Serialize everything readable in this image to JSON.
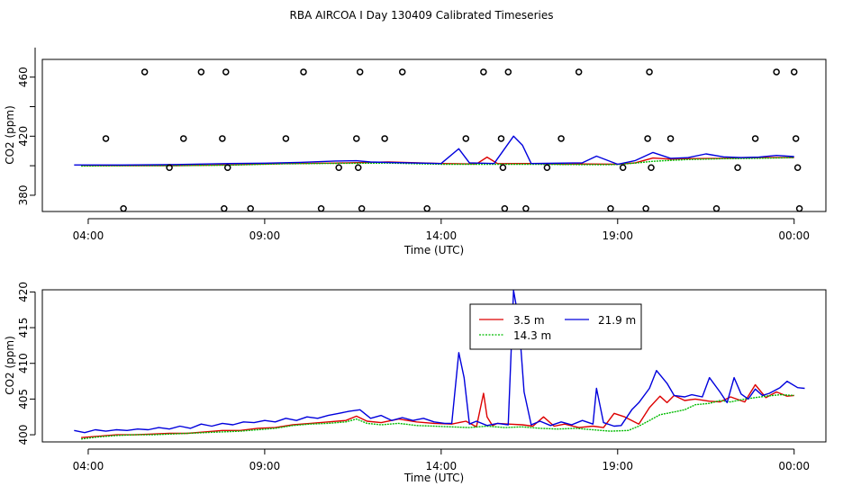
{
  "chart_data": {
    "type": "line",
    "title": "RBA AIRCOA I  Day 130409  Calibrated Timeseries",
    "panels": [
      {
        "id": "top",
        "xlabel": "Time (UTC)",
        "ylabel": "CO2 (ppm)",
        "xlim": [
          2.7,
          24.9
        ],
        "ylim": [
          369,
          472
        ],
        "xticks": [
          {
            "v": 4,
            "label": "04:00"
          },
          {
            "v": 9,
            "label": "09:00"
          },
          {
            "v": 14,
            "label": "14:00"
          },
          {
            "v": 19,
            "label": "19:00"
          },
          {
            "v": 24,
            "label": "00:00"
          }
        ],
        "yticks": [
          {
            "v": 380,
            "label": "380"
          },
          {
            "v": 420,
            "label": "420"
          },
          {
            "v": 460,
            "label": "460"
          }
        ],
        "series": [
          {
            "name": "3.5 m",
            "color": "#dd0000",
            "x": [
              3.8,
              5,
              6.5,
              8,
              9.5,
              11,
              12.5,
              14,
              15,
              15.3,
              15.6,
              16.5,
              17.5,
              18,
              19,
              19.5,
              20,
              20.5,
              21,
              22,
              23,
              24
            ],
            "y": [
              400.2,
              400.0,
              400.1,
              400.6,
              401.4,
              401.8,
              402.5,
              401.5,
              401.2,
              405.8,
              401.4,
              401.5,
              401.0,
              401.2,
              401.0,
              402.0,
              405.2,
              404.5,
              404.8,
              405.0,
              405.5,
              405.5
            ]
          },
          {
            "name": "14.3 m",
            "color": "#00bb00",
            "x": [
              3.8,
              5,
              6.5,
              8,
              9.5,
              11,
              12.5,
              14,
              15,
              16.5,
              17.5,
              18.5,
              19,
              19.5,
              20,
              21,
              22,
              23,
              24
            ],
            "y": [
              399.8,
              400.0,
              400.1,
              400.4,
              401.3,
              401.6,
              401.8,
              401.0,
              401.0,
              401.0,
              400.8,
              400.7,
              400.8,
              401.8,
              403.0,
              404.2,
              404.8,
              405.0,
              405.5
            ]
          },
          {
            "name": "21.9 m",
            "color": "#0000dd",
            "x": [
              3.6,
              5,
              6.5,
              8,
              9,
              10,
              11,
              11.6,
              12,
              12.5,
              14,
              14.5,
              14.8,
              15.5,
              16.05,
              16.3,
              16.55,
              17,
              18,
              18.4,
              19,
              19.5,
              20,
              20.5,
              21,
              21.5,
              22,
              22.5,
              23,
              23.5,
              24
            ],
            "y": [
              400.5,
              400.5,
              400.8,
              401.5,
              401.7,
              402.3,
              403.2,
              403.4,
              402.5,
              402.2,
              401.5,
              411.5,
              402.0,
              401.5,
              420.0,
              414.0,
              401.5,
              401.6,
              402.0,
              406.5,
              401.0,
              403.5,
              409.0,
              405.0,
              405.5,
              408.0,
              406.0,
              405.5,
              405.8,
              407.0,
              406.2
            ]
          }
        ],
        "outlier_points": {
          "x": [
            4.5,
            5.0,
            5.6,
            6.3,
            6.7,
            7.2,
            7.8,
            7.85,
            7.9,
            7.95,
            8.6,
            9.6,
            10.1,
            10.6,
            11.1,
            11.6,
            11.65,
            11.7,
            11.75,
            12.4,
            12.9,
            13.6,
            14.7,
            15.2,
            15.7,
            15.75,
            15.8,
            15.9,
            16.4,
            17.0,
            17.4,
            17.9,
            18.8,
            19.15,
            19.8,
            19.85,
            19.9,
            19.95,
            20.5,
            21.8,
            22.4,
            22.9,
            23.5,
            24.0,
            24.05,
            24.1,
            24.15
          ],
          "y": [
            418.4,
            371.0,
            463.5,
            398.7,
            418.4,
            463.5,
            418.4,
            371.0,
            463.5,
            398.7,
            371.0,
            418.4,
            463.5,
            371.0,
            398.7,
            418.4,
            398.7,
            463.5,
            371.0,
            418.4,
            463.5,
            371.0,
            418.4,
            463.5,
            418.4,
            398.7,
            371.0,
            463.5,
            371.0,
            398.7,
            418.4,
            463.5,
            371.0,
            398.7,
            371.0,
            418.4,
            463.5,
            398.7,
            418.4,
            371.0,
            398.7,
            418.4,
            463.5,
            463.5,
            418.4,
            398.7,
            371.0
          ]
        }
      },
      {
        "id": "bottom",
        "xlabel": "Time (UTC)",
        "ylabel": "CO2 (ppm)",
        "xlim": [
          2.7,
          24.9
        ],
        "ylim": [
          399.0,
          420.3
        ],
        "xticks": [
          {
            "v": 4,
            "label": "04:00"
          },
          {
            "v": 9,
            "label": "09:00"
          },
          {
            "v": 14,
            "label": "14:00"
          },
          {
            "v": 19,
            "label": "19:00"
          },
          {
            "v": 24,
            "label": "00:00"
          }
        ],
        "yticks": [
          {
            "v": 400,
            "label": "400"
          },
          {
            "v": 405,
            "label": "405"
          },
          {
            "v": 410,
            "label": "410"
          },
          {
            "v": 415,
            "label": "415"
          },
          {
            "v": 420,
            "label": "420"
          }
        ],
        "legend": {
          "position": "top-center",
          "entries": [
            {
              "label": "3.5 m",
              "series": "3.5 m"
            },
            {
              "label": "21.9 m",
              "series": "21.9 m"
            },
            {
              "label": "14.3 m",
              "series": "14.3 m"
            }
          ]
        },
        "series": [
          {
            "name": "3.5 m",
            "color": "#dd0000",
            "x": [
              3.8,
              4.3,
              4.8,
              5.3,
              5.8,
              6.3,
              6.8,
              7.3,
              7.8,
              8.3,
              8.8,
              9.3,
              9.8,
              10.3,
              10.8,
              11.3,
              11.6,
              11.9,
              12.3,
              12.8,
              13.3,
              13.8,
              14.3,
              14.7,
              15.0,
              15.2,
              15.3,
              15.45,
              15.6,
              15.9,
              16.3,
              16.6,
              16.9,
              17.2,
              17.5,
              17.9,
              18.3,
              18.6,
              18.9,
              19.2,
              19.6,
              19.9,
              20.2,
              20.4,
              20.6,
              20.9,
              21.2,
              21.6,
              21.9,
              22.2,
              22.6,
              22.9,
              23.2,
              23.5,
              23.8,
              24.0
            ],
            "y": [
              399.6,
              399.8,
              400.0,
              400.0,
              400.1,
              400.2,
              400.2,
              400.4,
              400.6,
              400.6,
              400.9,
              401.0,
              401.4,
              401.6,
              401.8,
              402.0,
              402.6,
              401.9,
              401.7,
              402.2,
              401.8,
              401.6,
              401.5,
              401.9,
              401.1,
              405.8,
              402.5,
              401.3,
              401.6,
              401.5,
              401.4,
              401.2,
              402.5,
              401.2,
              401.5,
              401.0,
              401.2,
              401.0,
              403.0,
              402.5,
              401.5,
              403.8,
              405.4,
              404.5,
              405.5,
              404.8,
              405.0,
              404.7,
              404.6,
              405.3,
              404.6,
              407.0,
              405.2,
              406.0,
              405.4,
              405.5
            ]
          },
          {
            "name": "14.3 m",
            "color": "#00bb00",
            "x": [
              3.8,
              4.3,
              4.8,
              5.3,
              5.8,
              6.3,
              6.8,
              7.3,
              7.8,
              8.3,
              8.8,
              9.3,
              9.8,
              10.3,
              10.8,
              11.3,
              11.6,
              11.9,
              12.3,
              12.8,
              13.3,
              13.8,
              14.3,
              14.8,
              15.3,
              15.8,
              16.3,
              16.8,
              17.3,
              17.8,
              18.3,
              18.8,
              19.3,
              19.6,
              19.9,
              20.2,
              20.6,
              20.9,
              21.2,
              21.6,
              21.9,
              22.2,
              22.6,
              22.9,
              23.2,
              23.6,
              24.0
            ],
            "y": [
              399.4,
              399.7,
              399.9,
              400.0,
              400.0,
              400.1,
              400.2,
              400.3,
              400.4,
              400.5,
              400.7,
              400.9,
              401.3,
              401.5,
              401.6,
              401.8,
              402.2,
              401.6,
              401.4,
              401.6,
              401.3,
              401.2,
              401.1,
              401.0,
              401.2,
              401.0,
              401.1,
              400.9,
              400.8,
              400.9,
              400.7,
              400.5,
              400.6,
              401.2,
              402.0,
              402.8,
              403.2,
              403.5,
              404.2,
              404.4,
              404.8,
              404.6,
              405.0,
              405.2,
              405.4,
              405.6,
              405.5
            ]
          },
          {
            "name": "21.9 m",
            "color": "#0000dd",
            "x": [
              3.6,
              3.9,
              4.2,
              4.5,
              4.8,
              5.1,
              5.4,
              5.7,
              6.0,
              6.3,
              6.6,
              6.9,
              7.2,
              7.5,
              7.8,
              8.1,
              8.4,
              8.7,
              9.0,
              9.3,
              9.6,
              9.9,
              10.2,
              10.5,
              10.8,
              11.1,
              11.4,
              11.7,
              12.0,
              12.3,
              12.6,
              12.9,
              13.2,
              13.5,
              13.8,
              14.1,
              14.3,
              14.5,
              14.65,
              14.8,
              15.0,
              15.3,
              15.6,
              15.9,
              16.05,
              16.2,
              16.35,
              16.55,
              16.8,
              17.1,
              17.4,
              17.7,
              18.0,
              18.3,
              18.4,
              18.6,
              18.9,
              19.1,
              19.4,
              19.6,
              19.9,
              20.1,
              20.4,
              20.6,
              20.9,
              21.1,
              21.4,
              21.6,
              21.9,
              22.1,
              22.3,
              22.5,
              22.7,
              22.9,
              23.1,
              23.3,
              23.6,
              23.8,
              24.1,
              24.3
            ],
            "y": [
              400.6,
              400.3,
              400.7,
              400.5,
              400.7,
              400.6,
              400.8,
              400.7,
              401.0,
              400.8,
              401.2,
              400.9,
              401.5,
              401.2,
              401.6,
              401.4,
              401.8,
              401.7,
              402.0,
              401.8,
              402.3,
              402.0,
              402.5,
              402.3,
              402.7,
              403.0,
              403.3,
              403.5,
              402.3,
              402.7,
              402.0,
              402.4,
              402.0,
              402.3,
              401.8,
              401.6,
              401.6,
              411.5,
              408.0,
              401.5,
              401.9,
              401.3,
              401.6,
              401.4,
              420.2,
              416.0,
              406.0,
              401.4,
              401.9,
              401.3,
              401.8,
              401.4,
              402.0,
              401.5,
              406.5,
              401.7,
              401.2,
              401.3,
              403.5,
              404.5,
              406.5,
              409.0,
              407.2,
              405.5,
              405.3,
              405.6,
              405.3,
              408.0,
              406.0,
              404.5,
              408.0,
              405.7,
              405.0,
              406.4,
              405.5,
              405.8,
              406.6,
              407.5,
              406.6,
              406.5
            ]
          }
        ]
      }
    ]
  }
}
